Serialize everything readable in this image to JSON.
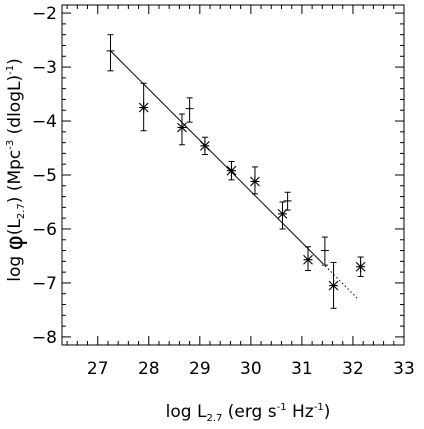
{
  "chart_data": {
    "type": "scatter",
    "xlabel": "log L",
    "xlabel_sub": "2.7",
    "xlabel_units_pre": " (erg s",
    "xlabel_units_sup1": "-1",
    "xlabel_units_mid": " Hz",
    "xlabel_units_sup2": "-1",
    "xlabel_units_post": ")",
    "ylabel_pre": "log ",
    "ylabel_phi": "φ",
    "ylabel_arg_open": "(L",
    "ylabel_arg_sub": "2.7",
    "ylabel_arg_close": ")  (Mpc",
    "ylabel_sup1": "-3",
    "ylabel_mid": " (dlogL)",
    "ylabel_sup2": "-1",
    "ylabel_post": ")",
    "xlim": [
      26.3,
      33.0
    ],
    "ylim": [
      -8.15,
      -1.85
    ],
    "xticks": [
      27,
      28,
      29,
      30,
      31,
      32,
      33
    ],
    "yticks": [
      -2,
      -3,
      -4,
      -5,
      -6,
      -7,
      -8
    ],
    "grid": false,
    "series": [
      {
        "marker": "plus",
        "points": [
          {
            "x": 27.25,
            "y": -2.7,
            "ylo": -3.07,
            "yhi": -2.4
          },
          {
            "x": 28.8,
            "y": -3.77,
            "ylo": -4.02,
            "yhi": -3.57
          },
          {
            "x": 30.72,
            "y": -5.48,
            "ylo": -5.65,
            "yhi": -5.32
          },
          {
            "x": 31.45,
            "y": -6.4,
            "ylo": -6.67,
            "yhi": -6.15
          }
        ]
      },
      {
        "marker": "asterisk",
        "points": [
          {
            "x": 27.9,
            "y": -3.75,
            "ylo": -4.18,
            "yhi": -3.3
          },
          {
            "x": 28.65,
            "y": -4.12,
            "ylo": -4.44,
            "yhi": -3.87
          },
          {
            "x": 29.1,
            "y": -4.46,
            "ylo": -4.62,
            "yhi": -4.3
          },
          {
            "x": 29.62,
            "y": -4.92,
            "ylo": -5.09,
            "yhi": -4.75
          },
          {
            "x": 30.08,
            "y": -5.12,
            "ylo": -5.35,
            "yhi": -4.85
          },
          {
            "x": 30.62,
            "y": -5.72,
            "ylo": -6.0,
            "yhi": -5.5
          },
          {
            "x": 31.12,
            "y": -6.57,
            "ylo": -6.77,
            "yhi": -6.33
          },
          {
            "x": 31.62,
            "y": -7.05,
            "ylo": -7.47,
            "yhi": -6.62
          },
          {
            "x": 32.15,
            "y": -6.7,
            "ylo": -6.88,
            "yhi": -6.52
          }
        ]
      }
    ],
    "fit_line": {
      "x": [
        27.25,
        31.4
      ],
      "y": [
        -2.7,
        -6.63
      ]
    },
    "fit_extrapolation": {
      "x": [
        31.4,
        32.1
      ],
      "y": [
        -6.63,
        -7.3
      ]
    }
  }
}
